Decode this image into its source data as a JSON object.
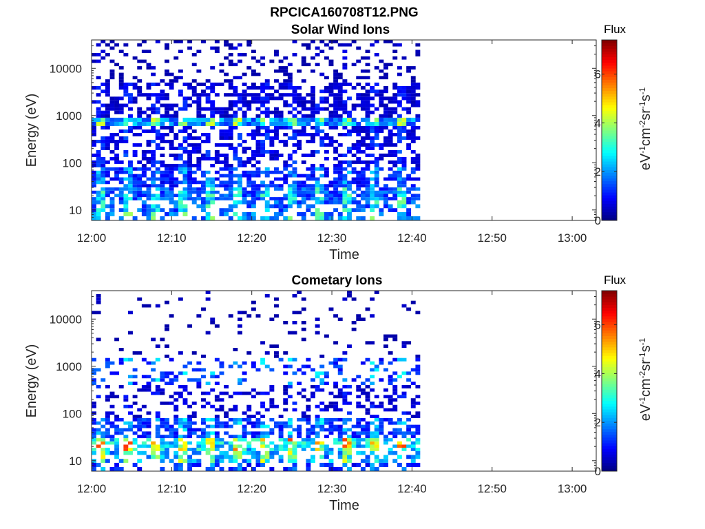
{
  "figure_title": "RPCICA160708T12.PNG",
  "colorbar_colormap": "jet",
  "chart_data": [
    {
      "type": "heatmap",
      "title": "Solar Wind Ions",
      "xlabel": "Time",
      "ylabel": "Energy (eV)",
      "x_ticks": [
        "12:00",
        "12:10",
        "12:20",
        "12:30",
        "12:40",
        "12:50",
        "13:00"
      ],
      "x_range": [
        "12:00",
        "13:03"
      ],
      "data_end": "12:41",
      "y_scale": "log",
      "y_range": [
        6,
        40000
      ],
      "y_ticks": [
        "10",
        "100",
        "1000",
        "10000"
      ],
      "colorbar": {
        "title": "Flux",
        "label": "eV-1cm-2sr-1s-1",
        "ticks": [
          "0",
          "2",
          "4",
          "6"
        ],
        "range": [
          0,
          7.4
        ]
      },
      "bands": [
        {
          "energy_range": [
            6,
            9
          ],
          "flux": 2.5,
          "coverage": 0.55
        },
        {
          "energy_range": [
            9,
            16
          ],
          "flux": 2.3,
          "coverage": 0.6
        },
        {
          "energy_range": [
            16,
            30
          ],
          "flux": 2.2,
          "coverage": 0.8
        },
        {
          "energy_range": [
            30,
            80
          ],
          "flux": 1.6,
          "coverage": 0.7
        },
        {
          "energy_range": [
            80,
            600
          ],
          "flux": 1.0,
          "coverage": 0.5
        },
        {
          "energy_range": [
            600,
            900
          ],
          "flux": 2.8,
          "coverage": 0.9
        },
        {
          "energy_range": [
            900,
            5000
          ],
          "flux": 0.8,
          "coverage": 0.55
        },
        {
          "energy_range": [
            5000,
            40000
          ],
          "flux": 0.5,
          "coverage": 0.25
        }
      ]
    },
    {
      "type": "heatmap",
      "title": "Cometary Ions",
      "xlabel": "Time",
      "ylabel": "Energy (eV)",
      "x_ticks": [
        "12:00",
        "12:10",
        "12:20",
        "12:30",
        "12:40",
        "12:50",
        "13:00"
      ],
      "x_range": [
        "12:00",
        "13:03"
      ],
      "data_end": "12:41",
      "y_scale": "log",
      "y_range": [
        6,
        40000
      ],
      "y_ticks": [
        "10",
        "100",
        "1000",
        "10000"
      ],
      "colorbar": {
        "title": "Flux",
        "label": "eV-1cm-2sr-1s-1",
        "ticks": [
          "0",
          "2",
          "4",
          "6"
        ],
        "range": [
          0,
          7.4
        ]
      },
      "bands": [
        {
          "energy_range": [
            6,
            9
          ],
          "flux": 1.6,
          "coverage": 0.45
        },
        {
          "energy_range": [
            9,
            16
          ],
          "flux": 3.0,
          "coverage": 0.55
        },
        {
          "energy_range": [
            16,
            30
          ],
          "flux": 3.8,
          "coverage": 0.65
        },
        {
          "energy_range": [
            30,
            80
          ],
          "flux": 1.8,
          "coverage": 0.6
        },
        {
          "energy_range": [
            80,
            400
          ],
          "flux": 0.8,
          "coverage": 0.3
        },
        {
          "energy_range": [
            400,
            1500
          ],
          "flux": 1.8,
          "coverage": 0.25
        },
        {
          "energy_range": [
            1500,
            40000
          ],
          "flux": 0.4,
          "coverage": 0.08
        }
      ]
    }
  ]
}
